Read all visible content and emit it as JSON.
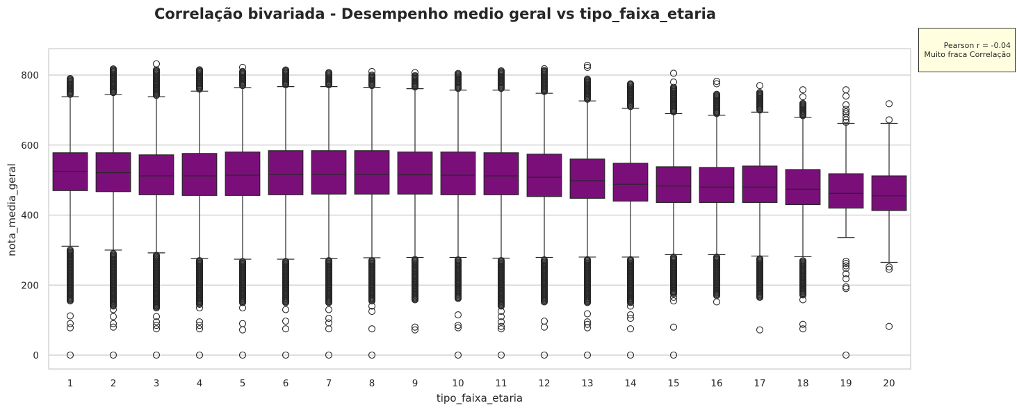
{
  "chart_data": {
    "type": "box",
    "title": "Correlação bivariada - Desempenho medio geral vs tipo_faixa_etaria",
    "xlabel": "tipo_faixa_etaria",
    "ylabel": "nota_media_geral",
    "categories": [
      "1",
      "2",
      "3",
      "4",
      "5",
      "6",
      "7",
      "8",
      "9",
      "10",
      "11",
      "12",
      "13",
      "14",
      "15",
      "16",
      "17",
      "18",
      "19",
      "20"
    ],
    "yticks": [
      0,
      200,
      400,
      600,
      800
    ],
    "ylim": [
      -45,
      875
    ],
    "grid": "horizontal",
    "box_color": "#7b0f7a",
    "boxes": [
      {
        "q1": 470,
        "median": 525,
        "q3": 578,
        "whislo": 311,
        "whishi": 738,
        "low_out_from": 155,
        "low_out_to": 300,
        "sparse_low": [
          112,
          90,
          78
        ],
        "high_out_from": 745,
        "high_out_to": 792,
        "sparse_high": [],
        "zero": true
      },
      {
        "q1": 467,
        "median": 521,
        "q3": 578,
        "whislo": 300,
        "whishi": 744,
        "low_out_from": 140,
        "low_out_to": 290,
        "sparse_low": [
          130,
          110,
          90,
          80
        ],
        "high_out_from": 750,
        "high_out_to": 818,
        "sparse_high": [],
        "zero": true
      },
      {
        "q1": 458,
        "median": 512,
        "q3": 572,
        "whislo": 292,
        "whishi": 738,
        "low_out_from": 135,
        "low_out_to": 286,
        "sparse_low": [
          110,
          95,
          85,
          75
        ],
        "high_out_from": 742,
        "high_out_to": 815,
        "sparse_high": [
          832
        ],
        "zero": true
      },
      {
        "q1": 456,
        "median": 512,
        "q3": 576,
        "whislo": 276,
        "whishi": 754,
        "low_out_from": 145,
        "low_out_to": 270,
        "sparse_low": [
          135,
          95,
          85,
          75
        ],
        "high_out_from": 760,
        "high_out_to": 815,
        "sparse_high": [],
        "zero": true
      },
      {
        "q1": 456,
        "median": 514,
        "q3": 580,
        "whislo": 274,
        "whishi": 764,
        "low_out_from": 150,
        "low_out_to": 268,
        "sparse_low": [
          135,
          90,
          72
        ],
        "high_out_from": 770,
        "high_out_to": 812,
        "sparse_high": [
          822
        ],
        "zero": true
      },
      {
        "q1": 458,
        "median": 516,
        "q3": 584,
        "whislo": 274,
        "whishi": 767,
        "low_out_from": 150,
        "low_out_to": 268,
        "sparse_low": [
          130,
          97,
          75
        ],
        "high_out_from": 772,
        "high_out_to": 815,
        "sparse_high": [],
        "zero": true
      },
      {
        "q1": 460,
        "median": 516,
        "q3": 584,
        "whislo": 276,
        "whishi": 767,
        "low_out_from": 150,
        "low_out_to": 270,
        "sparse_low": [
          130,
          105,
          92,
          75
        ],
        "high_out_from": 772,
        "high_out_to": 808,
        "sparse_high": [],
        "zero": true
      },
      {
        "q1": 460,
        "median": 516,
        "q3": 584,
        "whislo": 278,
        "whishi": 765,
        "low_out_from": 155,
        "low_out_to": 272,
        "sparse_low": [
          140,
          125,
          75
        ],
        "high_out_from": 770,
        "high_out_to": 800,
        "sparse_high": [
          810
        ],
        "zero": true
      },
      {
        "q1": 460,
        "median": 515,
        "q3": 580,
        "whislo": 279,
        "whishi": 761,
        "low_out_from": 158,
        "low_out_to": 273,
        "sparse_low": [
          80,
          72
        ],
        "high_out_from": 766,
        "high_out_to": 800,
        "sparse_high": [
          807
        ],
        "zero": false
      },
      {
        "q1": 458,
        "median": 514,
        "q3": 580,
        "whislo": 279,
        "whishi": 757,
        "low_out_from": 162,
        "low_out_to": 273,
        "sparse_low": [
          115,
          85,
          78
        ],
        "high_out_from": 762,
        "high_out_to": 805,
        "sparse_high": [],
        "zero": true
      },
      {
        "q1": 458,
        "median": 512,
        "q3": 578,
        "whislo": 277,
        "whishi": 757,
        "low_out_from": 140,
        "low_out_to": 272,
        "sparse_low": [
          125,
          110,
          95,
          82,
          75
        ],
        "high_out_from": 762,
        "high_out_to": 812,
        "sparse_high": [],
        "zero": true
      },
      {
        "q1": 453,
        "median": 508,
        "q3": 574,
        "whislo": 279,
        "whishi": 748,
        "low_out_from": 152,
        "low_out_to": 273,
        "sparse_low": [
          97,
          80
        ],
        "high_out_from": 753,
        "high_out_to": 815,
        "sparse_high": [
          818
        ],
        "zero": true
      },
      {
        "q1": 448,
        "median": 498,
        "q3": 560,
        "whislo": 280,
        "whishi": 726,
        "low_out_from": 150,
        "low_out_to": 274,
        "sparse_low": [
          118,
          95,
          88,
          78
        ],
        "high_out_from": 731,
        "high_out_to": 790,
        "sparse_high": [
          822,
          828
        ],
        "zero": true
      },
      {
        "q1": 440,
        "median": 488,
        "q3": 548,
        "whislo": 280,
        "whishi": 705,
        "low_out_from": 150,
        "low_out_to": 274,
        "sparse_low": [
          140,
          115,
          105,
          75
        ],
        "high_out_from": 710,
        "high_out_to": 775,
        "sparse_high": [],
        "zero": true
      },
      {
        "q1": 436,
        "median": 483,
        "q3": 538,
        "whislo": 287,
        "whishi": 690,
        "low_out_from": 175,
        "low_out_to": 281,
        "sparse_low": [
          165,
          155,
          80
        ],
        "high_out_from": 695,
        "high_out_to": 765,
        "sparse_high": [
          780,
          805
        ],
        "zero": true
      },
      {
        "q1": 436,
        "median": 480,
        "q3": 536,
        "whislo": 287,
        "whishi": 685,
        "low_out_from": 170,
        "low_out_to": 281,
        "sparse_low": [
          152
        ],
        "high_out_from": 690,
        "high_out_to": 745,
        "sparse_high": [
          775,
          782
        ],
        "zero": false
      },
      {
        "q1": 436,
        "median": 480,
        "q3": 540,
        "whislo": 283,
        "whishi": 694,
        "low_out_from": 165,
        "low_out_to": 275,
        "sparse_low": [
          72
        ],
        "high_out_from": 700,
        "high_out_to": 752,
        "sparse_high": [
          770
        ],
        "zero": false
      },
      {
        "q1": 430,
        "median": 474,
        "q3": 530,
        "whislo": 281,
        "whishi": 679,
        "low_out_from": 172,
        "low_out_to": 270,
        "sparse_low": [
          158,
          88,
          75
        ],
        "high_out_from": 684,
        "high_out_to": 720,
        "sparse_high": [
          738,
          758
        ],
        "zero": false
      },
      {
        "q1": 420,
        "median": 462,
        "q3": 518,
        "whislo": 336,
        "whishi": 662,
        "low_out_from": 0,
        "low_out_to": 0,
        "sparse_low": [
          268,
          262,
          255,
          248,
          232,
          218,
          195,
          190
        ],
        "high_out_from": 0,
        "high_out_to": 0,
        "sparse_high": [
          665,
          672,
          680,
          690,
          695,
          702,
          715,
          740,
          758
        ],
        "zero": true
      },
      {
        "q1": 413,
        "median": 455,
        "q3": 512,
        "whislo": 265,
        "whishi": 662,
        "low_out_from": 0,
        "low_out_to": 0,
        "sparse_low": [
          252,
          245,
          82
        ],
        "high_out_from": 0,
        "high_out_to": 0,
        "sparse_high": [
          672,
          718
        ],
        "zero": false
      }
    ],
    "annotation": [
      "Pearson r = -0.04",
      "Muito fraca Correlação"
    ]
  }
}
